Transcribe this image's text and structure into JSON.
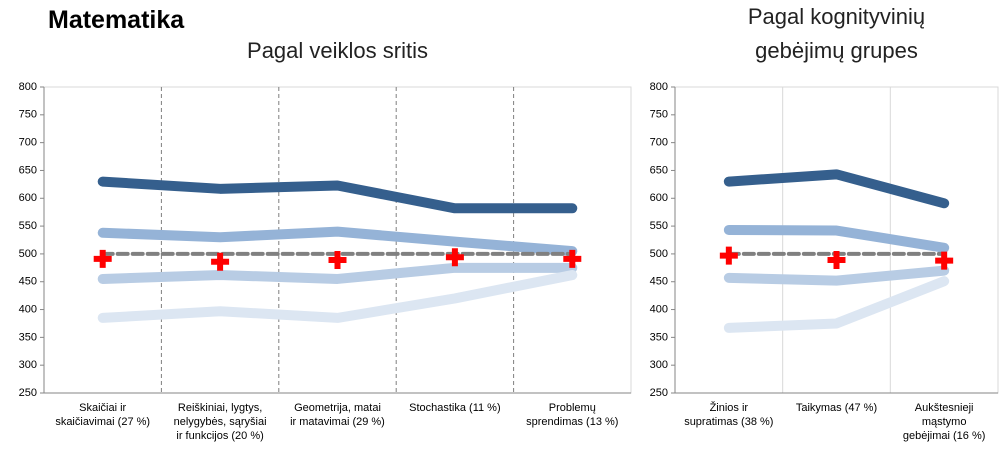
{
  "heading": "Matematika",
  "chart_data": [
    {
      "type": "line",
      "title": "Pagal veiklos sritis",
      "categories": [
        "Skaičiai ir\nskaičiavimai (27 %)",
        "Reiškiniai, lygtys,\nnelygybės, sąryšiai\nir funkcijos (20 %)",
        "Geometrija, matai\nir matavimai (29 %)",
        "Stochastika (11 %)",
        "Problemų\nsprendimas (13 %)"
      ],
      "series": [
        {
          "color": "#355f8d",
          "values": [
            630,
            617,
            623,
            582,
            582
          ]
        },
        {
          "color": "#95b3d7",
          "values": [
            538,
            530,
            540,
            522,
            505
          ]
        },
        {
          "color": "#b8cce4",
          "values": [
            455,
            462,
            455,
            475,
            475
          ]
        },
        {
          "color": "#dce6f2",
          "values": [
            385,
            397,
            385,
            420,
            462
          ]
        },
        {
          "color": "#808080",
          "dash": true,
          "values": [
            500,
            500,
            500,
            500,
            500
          ]
        },
        {
          "color": "#ff0000",
          "marker": "cross",
          "values": [
            491,
            486,
            489,
            494,
            491
          ]
        }
      ],
      "ylim": [
        250,
        800
      ],
      "yticks": [
        250,
        300,
        350,
        400,
        450,
        500,
        550,
        600,
        650,
        700,
        750,
        800
      ],
      "vgrid": "dashed"
    },
    {
      "type": "line",
      "title": "Pagal kognityvinių\ngebėjimų grupes",
      "categories": [
        "Žinios ir\nsupratimas (38 %)",
        "Taikymas (47 %)",
        "Aukštesnieji\nmąstymo\ngebėjimai (16 %)"
      ],
      "series": [
        {
          "color": "#355f8d",
          "values": [
            630,
            643,
            591
          ]
        },
        {
          "color": "#95b3d7",
          "values": [
            543,
            542,
            511
          ]
        },
        {
          "color": "#b8cce4",
          "values": [
            457,
            452,
            470
          ]
        },
        {
          "color": "#dce6f2",
          "values": [
            367,
            375,
            451
          ]
        },
        {
          "color": "#808080",
          "dash": true,
          "values": [
            500,
            500,
            500
          ]
        },
        {
          "color": "#ff0000",
          "marker": "cross",
          "values": [
            497,
            489,
            488
          ]
        }
      ],
      "ylim": [
        250,
        800
      ],
      "yticks": [
        250,
        300,
        350,
        400,
        450,
        500,
        550,
        600,
        650,
        700,
        750,
        800
      ],
      "vgrid": "solid"
    }
  ]
}
